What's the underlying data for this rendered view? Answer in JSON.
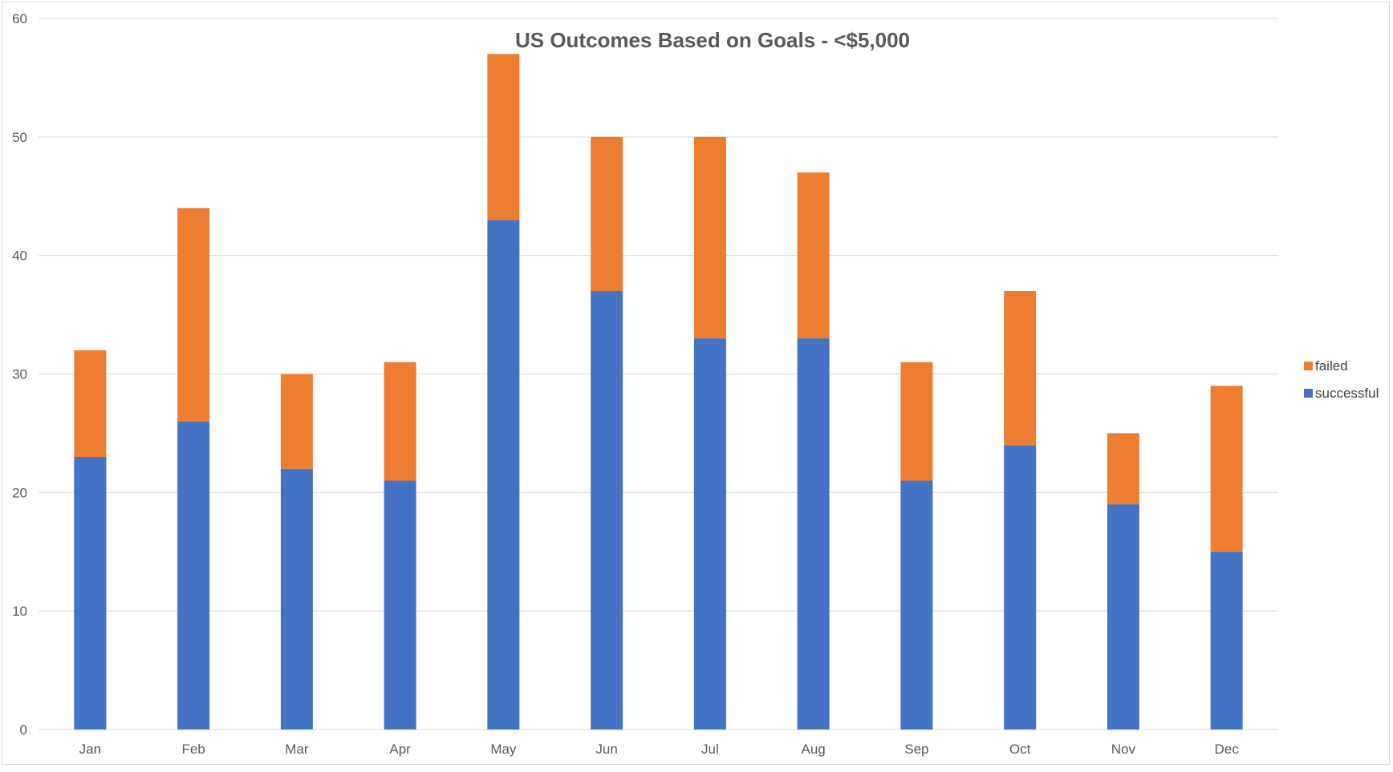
{
  "chart_data": {
    "type": "bar",
    "stacked": true,
    "title": "US Outcomes Based on Goals - <$5,000",
    "xlabel": "",
    "ylabel": "",
    "ylim": [
      0,
      60
    ],
    "yticks": [
      0,
      10,
      20,
      30,
      40,
      50,
      60
    ],
    "categories": [
      "Jan",
      "Feb",
      "Mar",
      "Apr",
      "May",
      "Jun",
      "Jul",
      "Aug",
      "Sep",
      "Oct",
      "Nov",
      "Dec"
    ],
    "series": [
      {
        "name": "successful",
        "color": "#4472C4",
        "values": [
          23,
          26,
          22,
          21,
          43,
          37,
          33,
          33,
          21,
          24,
          19,
          15
        ]
      },
      {
        "name": "failed",
        "color": "#ED7D31",
        "values": [
          9,
          18,
          8,
          10,
          14,
          13,
          17,
          14,
          10,
          13,
          6,
          14
        ]
      }
    ],
    "grid": true,
    "legend_position": "right",
    "legend_order": [
      "failed",
      "successful"
    ]
  }
}
